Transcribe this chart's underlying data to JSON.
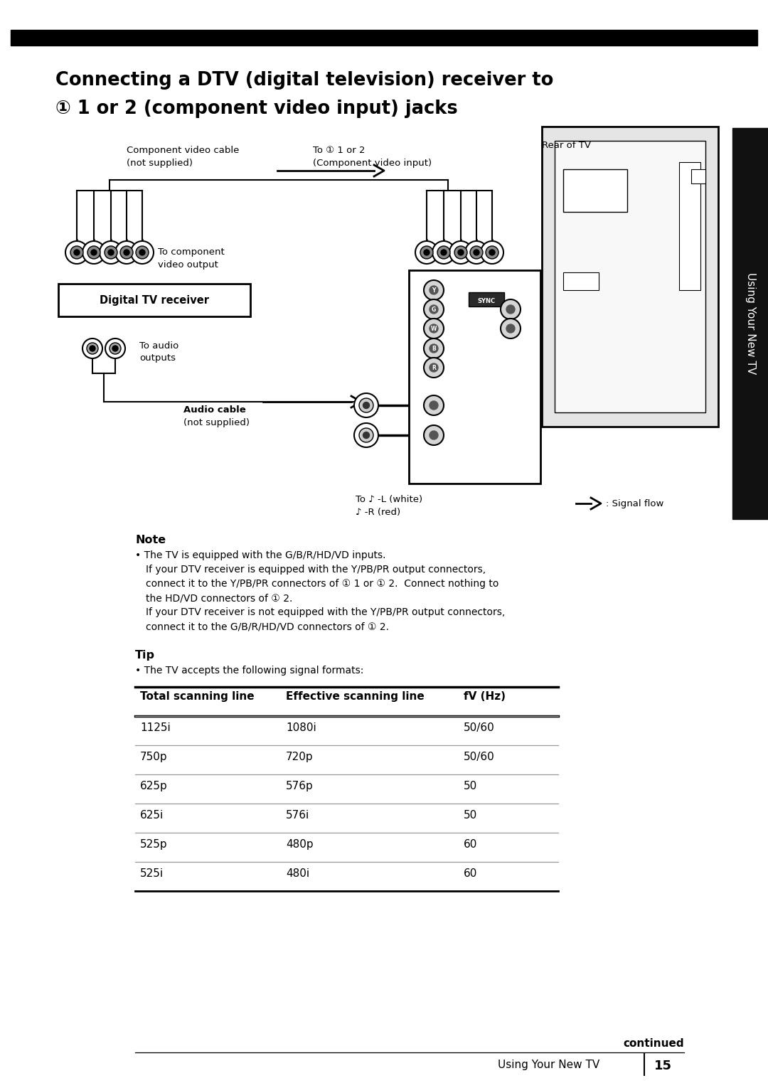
{
  "page_bg": "#ffffff",
  "title_line1": "Connecting a DTV (digital television) receiver to",
  "title_line2": "① 1 or 2 (component video input) jacks",
  "side_tab_text": "Using Your New TV",
  "note_header": "Note",
  "note_lines": [
    [
      "• The TV is equipped with the G/B/R/HD/VD inputs.",
      190,
      false
    ],
    [
      "If your DTV receiver is equipped with the Y/PB/PR output connectors,",
      205,
      false
    ],
    [
      "connect it to the Y/PB/PR connectors of ① 1 or ① 2.  Connect nothing to",
      205,
      false
    ],
    [
      "the HD/VD connectors of ① 2.",
      205,
      false
    ],
    [
      "If your DTV receiver is not equipped with the Y/PB/PR output connectors,",
      205,
      false
    ],
    [
      "connect it to the G/B/R/HD/VD connectors of ① 2.",
      205,
      false
    ]
  ],
  "tip_header": "Tip",
  "tip_line": "• The TV accepts the following signal formats:",
  "table_headers": [
    "Total scanning line",
    "Effective scanning line",
    "fV (Hz)"
  ],
  "table_rows": [
    [
      "1125i",
      "1080i",
      "50/60"
    ],
    [
      "750p",
      "720p",
      "50/60"
    ],
    [
      "625p",
      "576p",
      "50"
    ],
    [
      "625i",
      "576i",
      "50"
    ],
    [
      "525p",
      "480p",
      "60"
    ],
    [
      "525i",
      "480i",
      "60"
    ]
  ],
  "footer_continued": "continued",
  "footer_label": "Using Your New TV",
  "footer_page": "15",
  "diag": {
    "comp_cable_label": [
      "Component video cable",
      "(not supplied)"
    ],
    "to_input_label": [
      "To ① 1 or 2",
      "(Component video input)"
    ],
    "rear_tv_label": "Rear of TV",
    "to_comp_output": [
      "To component",
      "video output"
    ],
    "dtv_box_label": "Digital TV receiver",
    "to_audio_label": [
      "To audio",
      "outputs"
    ],
    "audio_cable_label": [
      "Audio cable",
      "(not supplied)"
    ],
    "to_L_label": "To ♪ -L (white)",
    "to_R_label": "♪ -R (red)",
    "signal_flow_label": ": Signal flow"
  }
}
